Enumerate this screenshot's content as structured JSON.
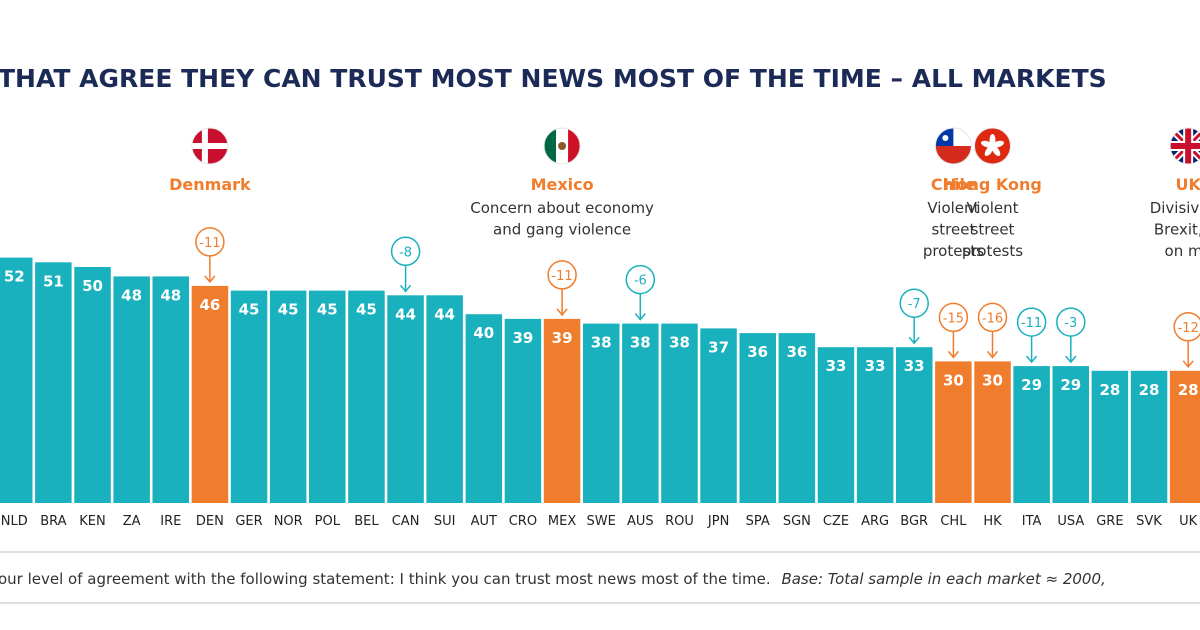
{
  "chart_data": {
    "type": "bar",
    "title": "THAT AGREE THEY CAN TRUST MOST NEWS MOST OF THE TIME – ALL MARKETS",
    "categories": [
      "NLD",
      "BRA",
      "KEN",
      "ZA",
      "IRE",
      "DEN",
      "GER",
      "NOR",
      "POL",
      "BEL",
      "CAN",
      "SUI",
      "AUT",
      "CRO",
      "MEX",
      "SWE",
      "AUS",
      "ROU",
      "JPN",
      "SPA",
      "SGN",
      "CZE",
      "ARG",
      "BGR",
      "CHL",
      "HK",
      "ITA",
      "USA",
      "GRE",
      "SVK",
      "UK"
    ],
    "values": [
      52,
      51,
      50,
      48,
      48,
      46,
      45,
      45,
      45,
      45,
      44,
      44,
      40,
      39,
      39,
      38,
      38,
      38,
      37,
      36,
      36,
      33,
      33,
      33,
      30,
      30,
      29,
      29,
      28,
      28,
      28
    ],
    "highlighted": [
      "DEN",
      "MEX",
      "CHL",
      "HK",
      "UK"
    ],
    "changes": [
      {
        "category": "DEN",
        "label": "-11",
        "style": "highlight"
      },
      {
        "category": "CAN",
        "label": "-8",
        "style": "normal"
      },
      {
        "category": "MEX",
        "label": "-11",
        "style": "highlight"
      },
      {
        "category": "AUS",
        "label": "-6",
        "style": "normal"
      },
      {
        "category": "BGR",
        "label": "-7",
        "style": "normal"
      },
      {
        "category": "CHL",
        "label": "-15",
        "style": "highlight"
      },
      {
        "category": "HK",
        "label": "-16",
        "style": "highlight"
      },
      {
        "category": "ITA",
        "label": "-11",
        "style": "normal"
      },
      {
        "category": "USA",
        "label": "-3",
        "style": "normal"
      },
      {
        "category": "UK",
        "label": "-12",
        "style": "highlight"
      }
    ],
    "annotations": [
      {
        "category": "DEN",
        "name": "Denmark",
        "lines": [],
        "flag": "denmark-flag"
      },
      {
        "category": "MEX",
        "name": "Mexico",
        "lines": [
          "Concern about economy",
          "and gang violence"
        ],
        "flag": "mexico-flag"
      },
      {
        "category": "CHL",
        "name": "Chile",
        "lines": [
          "Violent",
          "street",
          "protests"
        ],
        "flag": "chile-flag"
      },
      {
        "category": "HK",
        "name": "Hong Kong",
        "lines": [
          "Violent",
          "street",
          "protests"
        ],
        "flag": "hong-kong-flag"
      },
      {
        "category": "UK",
        "name": "UK",
        "lines": [
          "Divisive el",
          "Brexit, at",
          "on me"
        ],
        "flag": "uk-flag"
      }
    ],
    "footnote": "our level of agreement with the following statement: I think you can trust most news most of the time.",
    "footnote_base": "Base: Total sample in each market ≈ 2000,",
    "ylim": [
      0,
      52
    ],
    "grid": false,
    "legend": "none",
    "colors": {
      "bar": "#19b1bd",
      "highlight": "#f07d2d",
      "title": "#1b2a57",
      "normal_marker": "#19b1bd",
      "highlight_marker": "#f07d2d"
    }
  }
}
